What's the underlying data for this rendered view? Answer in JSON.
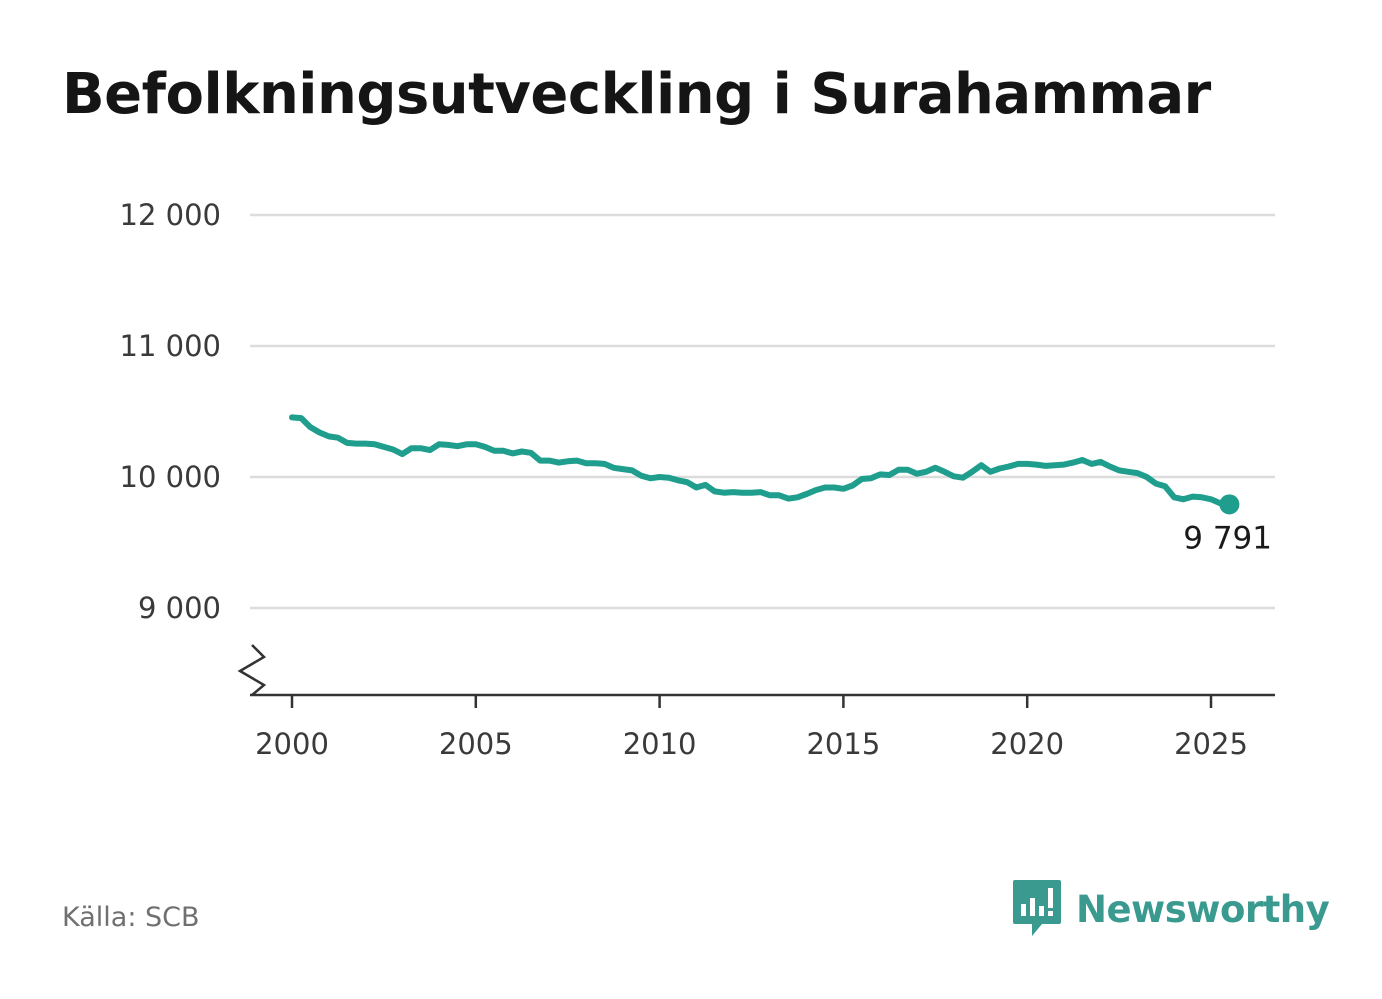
{
  "title": "Befolkningsutveckling i Surahammar",
  "source_text": "Källa: SCB",
  "brand": {
    "name": "Newsworthy",
    "icon": "newsworthy-logo-icon",
    "color": "#3a9a90"
  },
  "chart_data": {
    "type": "line",
    "title": "Befolkningsutveckling i Surahammar",
    "xlabel": "",
    "ylabel": "",
    "xlim": [
      1998.9,
      2026.7
    ],
    "ylim": [
      8400,
      12000
    ],
    "y_axis_break": true,
    "grid": "horizontal",
    "line_color": "#1f9e8e",
    "yticks": [
      {
        "value": 9000,
        "label": "9 000"
      },
      {
        "value": 10000,
        "label": "10 000"
      },
      {
        "value": 11000,
        "label": "11 000"
      },
      {
        "value": 12000,
        "label": "12 000"
      }
    ],
    "xticks": [
      {
        "value": 2000,
        "label": "2000"
      },
      {
        "value": 2005,
        "label": "2005"
      },
      {
        "value": 2010,
        "label": "2010"
      },
      {
        "value": 2015,
        "label": "2015"
      },
      {
        "value": 2020,
        "label": "2020"
      },
      {
        "value": 2025,
        "label": "2025"
      }
    ],
    "end_label": "9 791",
    "series": [
      {
        "x": [
          2000.0,
          2000.25,
          2000.5,
          2000.75,
          2001.0,
          2001.25,
          2001.5,
          2001.75,
          2002.0,
          2002.25,
          2002.5,
          2002.75,
          2003.0,
          2003.25,
          2003.5,
          2003.75,
          2004.0,
          2004.25,
          2004.5,
          2004.75,
          2005.0,
          2005.25,
          2005.5,
          2005.75,
          2006.0,
          2006.25,
          2006.5,
          2006.75,
          2007.0,
          2007.25,
          2007.5,
          2007.75,
          2008.0,
          2008.25,
          2008.5,
          2008.75,
          2009.0,
          2009.25,
          2009.5,
          2009.75,
          2010.0,
          2010.25,
          2010.5,
          2010.75,
          2011.0,
          2011.25,
          2011.5,
          2011.75,
          2012.0,
          2012.25,
          2012.5,
          2012.75,
          2013.0,
          2013.25,
          2013.5,
          2013.75,
          2014.0,
          2014.25,
          2014.5,
          2014.75,
          2015.0,
          2015.25,
          2015.5,
          2015.75,
          2016.0,
          2016.25,
          2016.5,
          2016.75,
          2017.0,
          2017.25,
          2017.5,
          2017.75,
          2018.0,
          2018.25,
          2018.5,
          2018.75,
          2019.0,
          2019.25,
          2019.5,
          2019.75,
          2020.0,
          2020.25,
          2020.5,
          2020.75,
          2021.0,
          2021.25,
          2021.5,
          2021.75,
          2022.0,
          2022.25,
          2022.5,
          2022.75,
          2023.0,
          2023.25,
          2023.5,
          2023.75,
          2024.0,
          2024.25,
          2024.5,
          2024.75,
          2025.0,
          2025.25,
          2025.5
        ],
        "y": [
          10455,
          10450,
          10380,
          10340,
          10310,
          10300,
          10260,
          10255,
          10255,
          10250,
          10230,
          10210,
          10175,
          10220,
          10220,
          10205,
          10250,
          10245,
          10235,
          10250,
          10250,
          10230,
          10200,
          10200,
          10180,
          10195,
          10185,
          10125,
          10125,
          10110,
          10120,
          10125,
          10105,
          10105,
          10100,
          10070,
          10060,
          10050,
          10010,
          9990,
          10000,
          9995,
          9975,
          9960,
          9920,
          9940,
          9890,
          9880,
          9885,
          9880,
          9880,
          9885,
          9860,
          9860,
          9835,
          9845,
          9870,
          9900,
          9920,
          9920,
          9910,
          9935,
          9985,
          9990,
          10020,
          10015,
          10055,
          10055,
          10025,
          10040,
          10070,
          10040,
          10005,
          9995,
          10040,
          10090,
          10040,
          10065,
          10080,
          10100,
          10100,
          10095,
          10085,
          10090,
          10095,
          10110,
          10130,
          10100,
          10115,
          10080,
          10050,
          10040,
          10030,
          10000,
          9950,
          9930,
          9845,
          9830,
          9850,
          9845,
          9830,
          9800,
          9791
        ]
      }
    ]
  }
}
